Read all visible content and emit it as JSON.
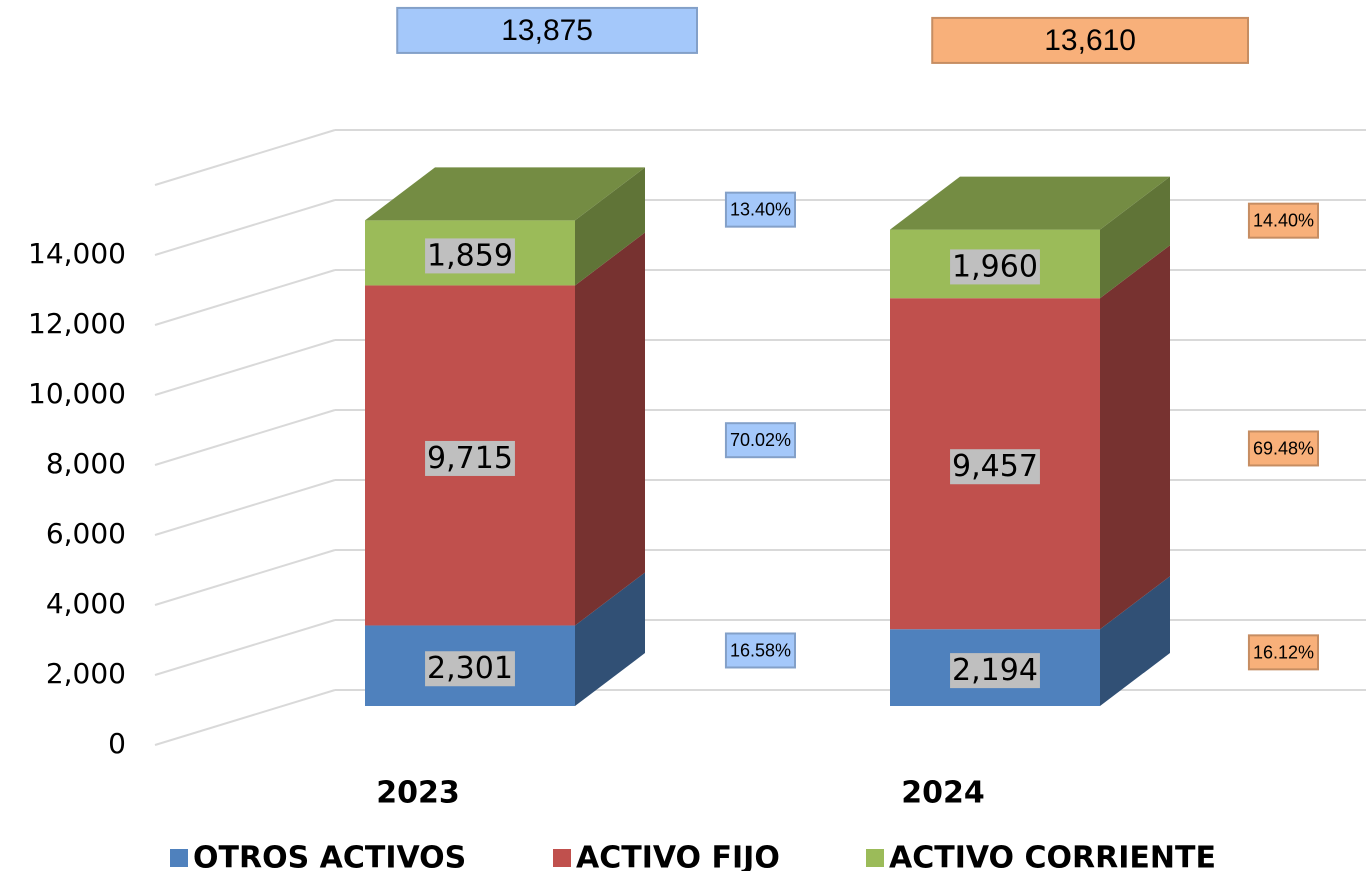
{
  "chart_data": {
    "type": "bar3d_stacked",
    "categories": [
      "2023",
      "2024"
    ],
    "series": [
      {
        "name": "OTROS ACTIVOS",
        "color": "#4f81bd",
        "values": [
          2301,
          2194
        ],
        "value_labels": [
          "2,301",
          "2,194"
        ],
        "percentages": [
          16.58,
          16.12
        ],
        "percentage_labels": [
          "16.58%",
          "16.12%"
        ]
      },
      {
        "name": "ACTIVO FIJO",
        "color": "#c0504d",
        "values": [
          9715,
          9457
        ],
        "value_labels": [
          "9,715",
          "9,457"
        ],
        "percentages": [
          70.02,
          69.48
        ],
        "percentage_labels": [
          "70.02%",
          "69.48%"
        ]
      },
      {
        "name": "ACTIVO CORRIENTE",
        "color": "#9bbb59",
        "values": [
          1859,
          1960
        ],
        "value_labels": [
          "1,859",
          "1,960"
        ],
        "percentages": [
          13.4,
          14.4
        ],
        "percentage_labels": [
          "13.40%",
          "14.40%"
        ]
      }
    ],
    "totals": [
      13875,
      13610
    ],
    "total_labels": [
      "13,875",
      "13,610"
    ],
    "label_colors": [
      "#a4c8fa",
      "#f8b07a"
    ],
    "ylim": [
      0,
      16000
    ],
    "yticks": [
      0,
      {
        "value": 2000,
        "label": "2,000"
      },
      {
        "value": 4000,
        "label": "4,000"
      },
      {
        "value": 6000,
        "label": "6,000"
      },
      {
        "value": 8000,
        "label": "8,000"
      },
      {
        "value": 10000,
        "label": "10,000"
      },
      {
        "value": 12000,
        "label": "12,000"
      },
      {
        "value": 14000,
        "label": "14,000"
      }
    ],
    "grid": true,
    "legend": "bottom"
  }
}
